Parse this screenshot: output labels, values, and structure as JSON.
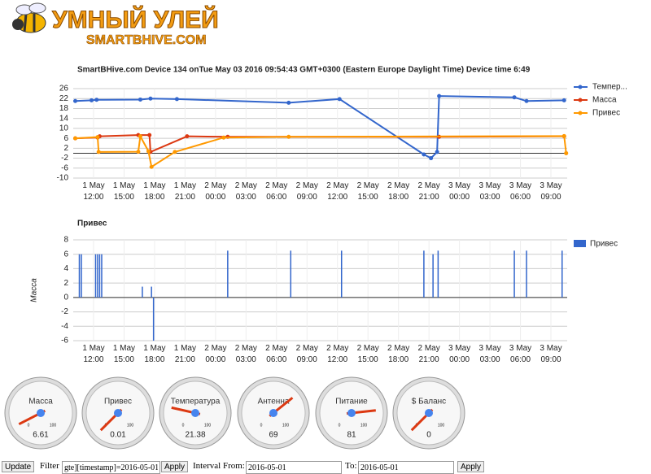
{
  "header": {
    "title": "УМНЫЙ УЛЕЙ",
    "subtitle": "SMARTBHIVE.COM"
  },
  "chart_data": [
    {
      "type": "line",
      "title": "SmartBHive.com Device 134 onTue May 03 2016 09:54:43 GMT+0300 (Eastern Europe Daylight Time) Device time 6:49",
      "xlim": [
        10,
        58.6
      ],
      "ylim": [
        -10,
        26
      ],
      "yticks": [
        -10,
        -6,
        -2,
        2,
        6,
        10,
        14,
        18,
        22,
        26
      ],
      "grid": true,
      "xticks": [
        {
          "value": 12,
          "label": "1 May 12:00"
        },
        {
          "value": 15,
          "label": "1 May 15:00"
        },
        {
          "value": 18,
          "label": "1 May 18:00"
        },
        {
          "value": 21,
          "label": "1 May 21:00"
        },
        {
          "value": 24,
          "label": "2 May 00:00"
        },
        {
          "value": 27,
          "label": "2 May 03:00"
        },
        {
          "value": 30,
          "label": "2 May 06:00"
        },
        {
          "value": 33,
          "label": "2 May 09:00"
        },
        {
          "value": 36,
          "label": "2 May 12:00"
        },
        {
          "value": 39,
          "label": "2 May 15:00"
        },
        {
          "value": 42,
          "label": "2 May 18:00"
        },
        {
          "value": 45,
          "label": "2 May 21:00"
        },
        {
          "value": 48,
          "label": "3 May 00:00"
        },
        {
          "value": 51,
          "label": "3 May 03:00"
        },
        {
          "value": 54,
          "label": "3 May 06:00"
        },
        {
          "value": 57,
          "label": "3 May 09:00"
        }
      ],
      "series": [
        {
          "name": "Темпер...",
          "color": "#3366cc",
          "x": [
            10.2,
            11.8,
            12.3,
            16.6,
            17.6,
            20.2,
            31.2,
            36.2,
            44.5,
            45.2,
            45.8,
            46,
            53.4,
            54.6,
            58.3
          ],
          "values": [
            21,
            21.3,
            21.5,
            21.6,
            22,
            21.8,
            20.3,
            21.8,
            -0.5,
            -2,
            0.5,
            23,
            22.5,
            21,
            21.3
          ]
        },
        {
          "name": "Масса",
          "color": "#dc3912",
          "x": [
            10.2,
            12.4,
            12.6,
            16.4,
            17.5,
            17.6,
            21.2,
            25.2,
            46,
            58.3
          ],
          "values": [
            6,
            6.3,
            6.8,
            7.3,
            7.3,
            0.5,
            6.8,
            6.6,
            6.6,
            6.8
          ]
        },
        {
          "name": "Привес",
          "color": "#ff9900",
          "x": [
            10.2,
            12.4,
            12.5,
            16.4,
            16.6,
            17.4,
            17.7,
            20.0,
            24.8,
            31.2,
            58.3,
            58.5
          ],
          "values": [
            6,
            6.5,
            0.5,
            0.6,
            6.8,
            0.8,
            -5.5,
            0.5,
            6.3,
            6.6,
            6.9,
            0
          ]
        }
      ]
    },
    {
      "type": "bar",
      "title": "Привес",
      "y_label": "Масса",
      "xlim": [
        10,
        58.6
      ],
      "ylim": [
        -6,
        8
      ],
      "yticks": [
        -6,
        -4,
        -2,
        0,
        2,
        4,
        6,
        8
      ],
      "grid": true,
      "xticks": [
        {
          "value": 12,
          "label": "1 May 12:00"
        },
        {
          "value": 15,
          "label": "1 May 15:00"
        },
        {
          "value": 18,
          "label": "1 May 18:00"
        },
        {
          "value": 21,
          "label": "1 May 21:00"
        },
        {
          "value": 24,
          "label": "2 May 00:00"
        },
        {
          "value": 27,
          "label": "2 May 03:00"
        },
        {
          "value": 30,
          "label": "2 May 06:00"
        },
        {
          "value": 33,
          "label": "2 May 09:00"
        },
        {
          "value": 36,
          "label": "2 May 12:00"
        },
        {
          "value": 39,
          "label": "2 May 15:00"
        },
        {
          "value": 42,
          "label": "2 May 18:00"
        },
        {
          "value": 45,
          "label": "2 May 21:00"
        },
        {
          "value": 48,
          "label": "3 May 00:00"
        },
        {
          "value": 51,
          "label": "3 May 03:00"
        },
        {
          "value": 54,
          "label": "3 May 06:00"
        },
        {
          "value": 57,
          "label": "3 May 09:00"
        }
      ],
      "series": [
        {
          "name": "Привес",
          "color": "#3366cc",
          "x": [
            10.6,
            10.8,
            12.2,
            12.4,
            12.6,
            12.8,
            16.8,
            17.7,
            17.9,
            25.2,
            31.4,
            36.4,
            44.5,
            45.4,
            45.9,
            53.4,
            54.6,
            58.1
          ],
          "values": [
            6,
            6,
            6,
            6,
            6,
            6,
            1.5,
            1.5,
            -6,
            6.5,
            6.5,
            6.5,
            6.5,
            6,
            6.5,
            6.5,
            6.5,
            6.5
          ]
        }
      ]
    }
  ],
  "gauges": {
    "min": 0,
    "max": 100,
    "items": [
      {
        "label": "Масса",
        "value": 6.61
      },
      {
        "label": "Привес",
        "value": 0.01
      },
      {
        "label": "Температура",
        "value": 21.38
      },
      {
        "label": "Антенна",
        "value": 69
      },
      {
        "label": "Питание",
        "value": 81
      },
      {
        "label": "$ Баланс",
        "value": 0
      }
    ]
  },
  "controls": {
    "update": "Update",
    "filter_label": "Filter",
    "filter_value": "gte][timestamp]=2016-05-01",
    "apply": "Apply",
    "from_label": "Interval From:",
    "from_value": "2016-05-01",
    "to_label": "To:",
    "to_value": "2016-05-01",
    "apply2": "Apply"
  }
}
